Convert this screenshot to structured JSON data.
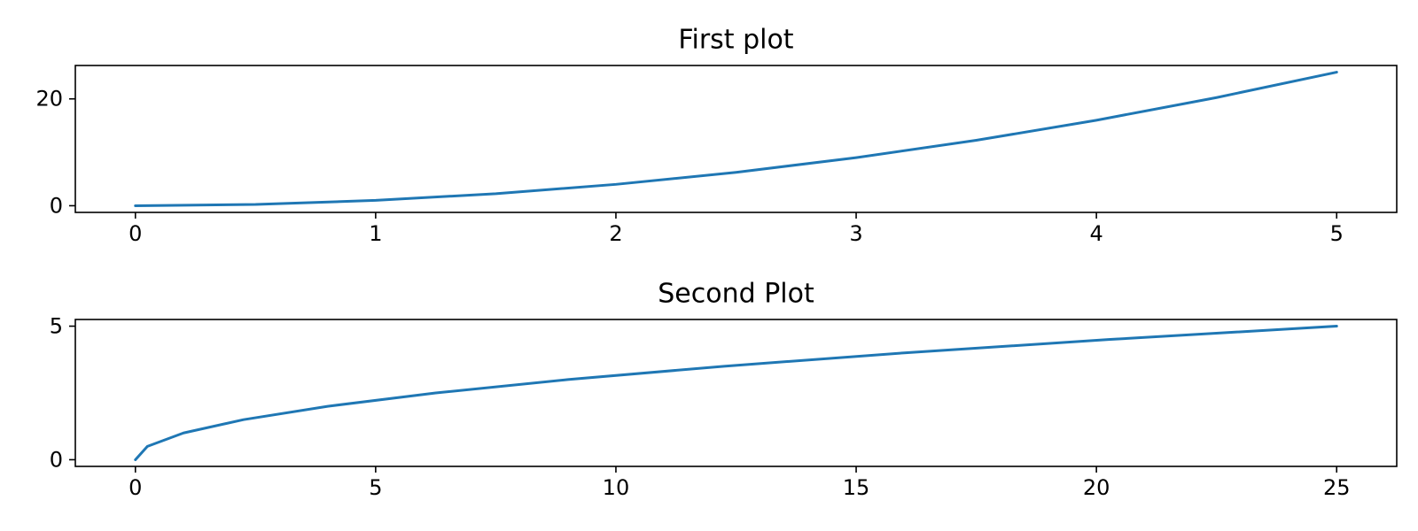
{
  "colors": {
    "line": "#1f77b4",
    "axes": "#000000",
    "background": "#ffffff"
  },
  "chart_data": [
    {
      "type": "line",
      "title": "First plot",
      "xlabel": "",
      "ylabel": "",
      "grid": false,
      "xlim": [
        -0.25,
        5.25
      ],
      "ylim": [
        -1.25,
        26.25
      ],
      "xticks": [
        0,
        1,
        2,
        3,
        4,
        5
      ],
      "xtick_labels": [
        "0",
        "1",
        "2",
        "3",
        "4",
        "5"
      ],
      "yticks": [
        0,
        20
      ],
      "ytick_labels": [
        "0",
        "20"
      ],
      "series": [
        {
          "x": [
            0,
            0.5,
            1,
            1.5,
            2,
            2.5,
            3,
            3.5,
            4,
            4.5,
            5
          ],
          "y": [
            0,
            0.25,
            1,
            2.25,
            4,
            6.25,
            9,
            12.25,
            16,
            20.25,
            25
          ]
        }
      ]
    },
    {
      "type": "line",
      "title": "Second Plot",
      "xlabel": "",
      "ylabel": "",
      "grid": false,
      "xlim": [
        -1.25,
        26.25
      ],
      "ylim": [
        -0.25,
        5.25
      ],
      "xticks": [
        0,
        5,
        10,
        15,
        20,
        25
      ],
      "xtick_labels": [
        "0",
        "5",
        "10",
        "15",
        "20",
        "25"
      ],
      "yticks": [
        0,
        5
      ],
      "ytick_labels": [
        "0",
        "5"
      ],
      "series": [
        {
          "x": [
            0,
            0.25,
            1,
            2.25,
            4,
            6.25,
            9,
            12.25,
            16,
            20.25,
            25
          ],
          "y": [
            0,
            0.5,
            1,
            1.5,
            2,
            2.5,
            3,
            3.5,
            4,
            4.5,
            5
          ]
        }
      ]
    }
  ]
}
